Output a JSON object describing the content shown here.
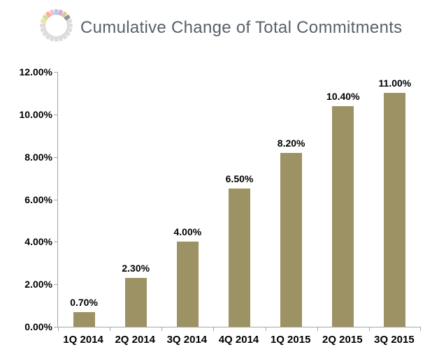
{
  "brand": {
    "logo": {
      "icon": "segmented-ring-logo",
      "segment_colors": [
        "#a9cce8",
        "#dba9d9",
        "#d9cc90",
        "#8f9396",
        "#dcdcdc",
        "#dcdcdc",
        "#dcdcdc",
        "#dcdcdc",
        "#dcdcdc",
        "#dcdcdc",
        "#dcdcdc",
        "#dcdcdc",
        "#dcdcdc",
        "#dcdcdc",
        "#dcdcdc",
        "#dcdcdc",
        "#f0e5a0",
        "#cfdf9f",
        "#f6b096",
        "#f5bcd3"
      ]
    }
  },
  "header": {
    "title": "Cumulative Change of Total Commitments",
    "title_color": "#59606a"
  },
  "chart_data": {
    "type": "bar",
    "title": "Cumulative Change of Total Commitments",
    "categories": [
      "1Q 2014",
      "2Q 2014",
      "3Q 2014",
      "4Q 2014",
      "1Q 2015",
      "2Q 2015",
      "3Q 2015"
    ],
    "values": [
      0.7,
      2.3,
      4.0,
      6.5,
      8.2,
      10.4,
      11.0
    ],
    "data_labels": [
      "0.70%",
      "2.30%",
      "4.00%",
      "6.50%",
      "8.20%",
      "10.40%",
      "11.00%"
    ],
    "xlabel": "",
    "ylabel": "",
    "ylim": [
      0,
      12
    ],
    "yticks": {
      "values": [
        0,
        2,
        4,
        6,
        8,
        10,
        12
      ],
      "labels": [
        "0.00%",
        "2.00%",
        "4.00%",
        "6.00%",
        "8.00%",
        "10.00%",
        "12.00%"
      ]
    },
    "grid": "off",
    "legend": "none",
    "bar_color": "#9d9264",
    "axis_color": "#a6a6a6",
    "label_color": "#000000"
  }
}
